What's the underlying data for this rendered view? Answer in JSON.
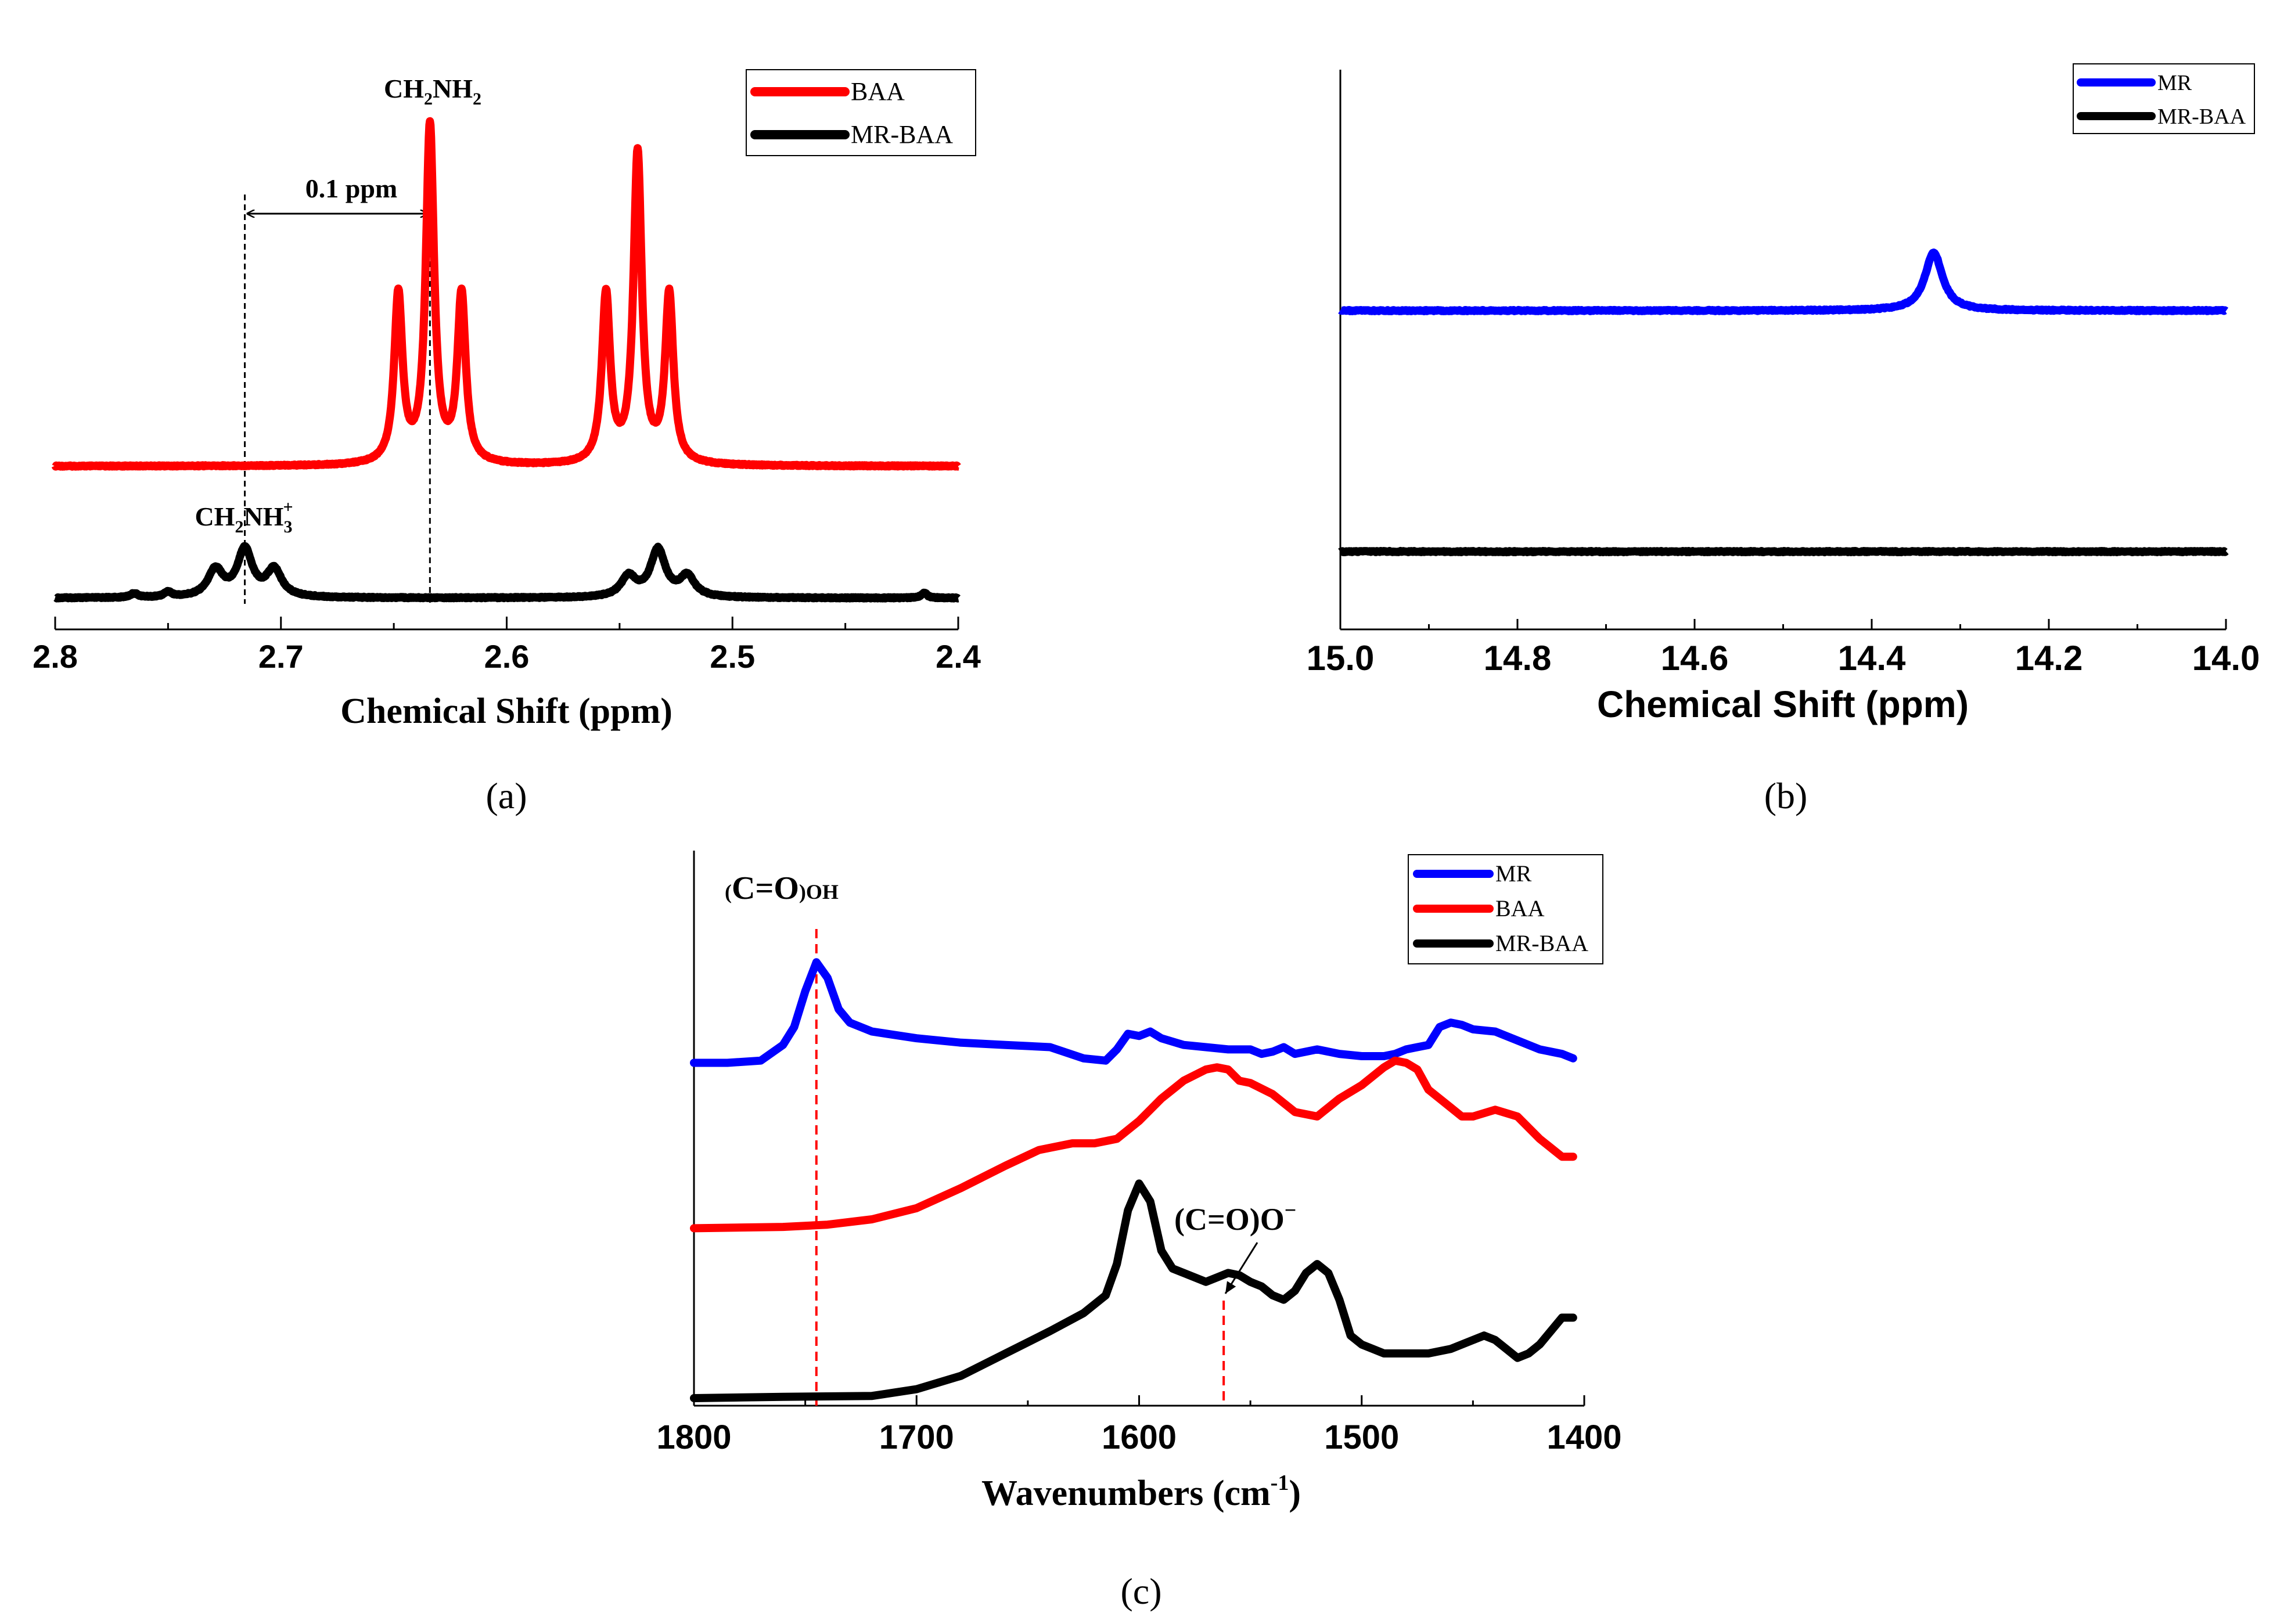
{
  "chart_data": [
    {
      "id": "a",
      "type": "line",
      "panel_label": "(a)",
      "title": "",
      "xlabel": "Chemical Shift (ppm)",
      "ylabel": "",
      "xlim": [
        2.8,
        2.4
      ],
      "xticks": [
        "2.8",
        "2.7",
        "2.6",
        "2.5",
        "2.4"
      ],
      "grid": false,
      "legend_position": "top-right",
      "series": [
        {
          "name": "BAA",
          "color": "#ff0000",
          "baseline": 0,
          "peaks": [
            {
              "center": 2.648,
              "height": 0.5,
              "width": 0.0022
            },
            {
              "center": 2.634,
              "height": 1.0,
              "width": 0.0022
            },
            {
              "center": 2.62,
              "height": 0.5,
              "width": 0.0022
            },
            {
              "center": 2.556,
              "height": 0.5,
              "width": 0.0022
            },
            {
              "center": 2.542,
              "height": 0.92,
              "width": 0.0022
            },
            {
              "center": 2.528,
              "height": 0.5,
              "width": 0.0022
            }
          ]
        },
        {
          "name": "MR-BAA",
          "color": "#000000",
          "baseline": 0,
          "peaks": [
            {
              "center": 2.765,
              "height": 0.012,
              "width": 0.002
            },
            {
              "center": 2.75,
              "height": 0.015,
              "width": 0.002
            },
            {
              "center": 2.729,
              "height": 0.08,
              "width": 0.004
            },
            {
              "center": 2.716,
              "height": 0.14,
              "width": 0.004
            },
            {
              "center": 2.703,
              "height": 0.08,
              "width": 0.004
            },
            {
              "center": 2.546,
              "height": 0.06,
              "width": 0.004
            },
            {
              "center": 2.533,
              "height": 0.14,
              "width": 0.004
            },
            {
              "center": 2.52,
              "height": 0.06,
              "width": 0.004
            },
            {
              "center": 2.415,
              "height": 0.015,
              "width": 0.0015
            }
          ]
        }
      ],
      "annotations": [
        {
          "text": "CH2NH2",
          "near_x": 2.634
        },
        {
          "text": "CH2NH3+",
          "near_x": 2.716
        },
        {
          "text": "0.1 ppm",
          "from_x": 2.716,
          "to_x": 2.634
        }
      ],
      "reference_lines": [
        2.716,
        2.634
      ]
    },
    {
      "id": "b",
      "type": "line",
      "panel_label": "(b)",
      "title": "",
      "xlabel": "Chemical Shift (ppm)",
      "ylabel": "",
      "xlim": [
        15.0,
        14.0
      ],
      "xticks": [
        "15.0",
        "14.8",
        "14.6",
        "14.4",
        "14.2",
        "14.0"
      ],
      "grid": false,
      "legend_position": "top-right",
      "series": [
        {
          "name": "MR",
          "color": "#0000ff",
          "baseline": 0,
          "peaks": [
            {
              "center": 14.33,
              "height": 1.0,
              "width": 0.012
            }
          ]
        },
        {
          "name": "MR-BAA",
          "color": "#000000",
          "baseline": 0,
          "peaks": []
        }
      ]
    },
    {
      "id": "c",
      "type": "line",
      "panel_label": "(c)",
      "title": "",
      "xlabel": "Wavenumbers (cm-1)",
      "ylabel": "",
      "xlim": [
        1800,
        1400
      ],
      "xticks": [
        "1800",
        "1700",
        "1600",
        "1500",
        "1400"
      ],
      "grid": false,
      "legend_position": "top-right",
      "series": [
        {
          "name": "MR",
          "color": "#0000ff",
          "x": [
            1800,
            1785,
            1770,
            1760,
            1755,
            1750,
            1745,
            1740,
            1735,
            1730,
            1720,
            1700,
            1680,
            1660,
            1640,
            1625,
            1615,
            1610,
            1605,
            1600,
            1595,
            1590,
            1580,
            1570,
            1560,
            1550,
            1545,
            1540,
            1535,
            1530,
            1520,
            1510,
            1500,
            1490,
            1485,
            1480,
            1475,
            1470,
            1465,
            1460,
            1455,
            1450,
            1440,
            1430,
            1420,
            1410,
            1405
          ],
          "values": [
            0.0,
            0.0,
            0.005,
            0.04,
            0.08,
            0.16,
            0.225,
            0.19,
            0.12,
            0.09,
            0.07,
            0.055,
            0.045,
            0.04,
            0.035,
            0.01,
            0.005,
            0.03,
            0.065,
            0.06,
            0.07,
            0.055,
            0.04,
            0.035,
            0.03,
            0.03,
            0.02,
            0.025,
            0.035,
            0.02,
            0.03,
            0.02,
            0.015,
            0.015,
            0.02,
            0.03,
            0.035,
            0.04,
            0.08,
            0.09,
            0.085,
            0.075,
            0.07,
            0.05,
            0.03,
            0.02,
            0.01
          ],
          "offset": 0.75
        },
        {
          "name": "BAA",
          "color": "#ff0000",
          "x": [
            1800,
            1760,
            1740,
            1720,
            1700,
            1680,
            1660,
            1645,
            1630,
            1620,
            1610,
            1600,
            1590,
            1580,
            1570,
            1565,
            1560,
            1555,
            1550,
            1540,
            1530,
            1520,
            1510,
            1500,
            1490,
            1485,
            1480,
            1475,
            1470,
            1460,
            1455,
            1450,
            1440,
            1430,
            1420,
            1410,
            1405
          ],
          "values": [
            0.0,
            0.003,
            0.008,
            0.02,
            0.045,
            0.09,
            0.14,
            0.175,
            0.19,
            0.19,
            0.2,
            0.24,
            0.29,
            0.33,
            0.355,
            0.36,
            0.355,
            0.33,
            0.325,
            0.3,
            0.26,
            0.25,
            0.29,
            0.32,
            0.36,
            0.375,
            0.37,
            0.355,
            0.31,
            0.27,
            0.25,
            0.25,
            0.265,
            0.25,
            0.2,
            0.16,
            0.16
          ],
          "offset": 0.38
        },
        {
          "name": "MR-BAA",
          "color": "#000000",
          "x": [
            1800,
            1760,
            1720,
            1700,
            1680,
            1660,
            1640,
            1625,
            1615,
            1610,
            1605,
            1600,
            1595,
            1590,
            1585,
            1580,
            1570,
            1565,
            1560,
            1555,
            1550,
            1545,
            1540,
            1535,
            1530,
            1525,
            1520,
            1515,
            1510,
            1505,
            1500,
            1495,
            1490,
            1480,
            1470,
            1460,
            1450,
            1445,
            1440,
            1435,
            1430,
            1425,
            1420,
            1415,
            1410,
            1405
          ],
          "values": [
            0.0,
            0.003,
            0.005,
            0.02,
            0.05,
            0.1,
            0.15,
            0.19,
            0.23,
            0.3,
            0.42,
            0.48,
            0.44,
            0.33,
            0.29,
            0.28,
            0.26,
            0.27,
            0.28,
            0.275,
            0.26,
            0.25,
            0.23,
            0.22,
            0.24,
            0.28,
            0.3,
            0.28,
            0.22,
            0.14,
            0.12,
            0.11,
            0.1,
            0.1,
            0.1,
            0.11,
            0.13,
            0.14,
            0.13,
            0.11,
            0.09,
            0.1,
            0.12,
            0.15,
            0.18,
            0.18
          ],
          "offset": 0.0
        }
      ],
      "annotations": [
        {
          "text": "(C=O)OH",
          "near_x": 1745
        },
        {
          "text": "(C=O)O-",
          "near_x": 1562
        }
      ],
      "reference_lines": [
        1745,
        1562
      ]
    }
  ],
  "labels": {
    "a_ch2nh2_main": "CH",
    "a_ch2nh2_sub1": "2",
    "a_ch2nh2_mid": "NH",
    "a_ch2nh2_sub2": "2",
    "a_ch2nh3_main": "CH",
    "a_ch2nh3_sub1": "2",
    "a_ch2nh3_mid": "NH",
    "a_ch2nh3_sub2": "3",
    "a_ch2nh3_sup": "+",
    "a_ppm_gap": "0.1 ppm",
    "c_cooh_pre": "(",
    "c_cooh_main": "C=O",
    "c_cooh_post": ")OH",
    "c_coo_main": "(C=O)O",
    "c_coo_sup": "−",
    "c_xlabel_main": "Wavenumbers (cm",
    "c_xlabel_sup": "-1",
    "c_xlabel_end": ")"
  }
}
